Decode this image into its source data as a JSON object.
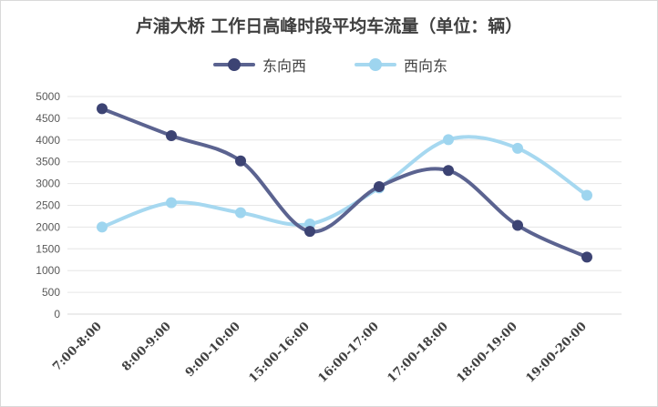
{
  "chart_data": {
    "type": "line",
    "title": "卢浦大桥  工作日高峰时段平均车流量（单位：辆）",
    "categories": [
      "7:00-8:00",
      "8:00-9:00",
      "9:00-10:00",
      "15:00-16:00",
      "16:00-17:00",
      "17:00-18:00",
      "18:00-19:00",
      "19:00-20:00"
    ],
    "series": [
      {
        "name": "东向西",
        "color": "#5b6390",
        "marker_color": "#3c4373",
        "values": [
          4720,
          4100,
          3520,
          1900,
          2930,
          3300,
          2040,
          1310
        ]
      },
      {
        "name": "西向东",
        "color": "#a6d8f0",
        "marker_color": "#9ed5ef",
        "values": [
          2000,
          2560,
          2330,
          2070,
          2900,
          4010,
          3810,
          2730
        ]
      }
    ],
    "ylim": [
      0,
      5000
    ],
    "yticks": [
      0,
      500,
      1000,
      1500,
      2000,
      2500,
      3000,
      3500,
      4000,
      4500,
      5000
    ],
    "grid": true,
    "legend_position": "top",
    "smooth": true
  }
}
